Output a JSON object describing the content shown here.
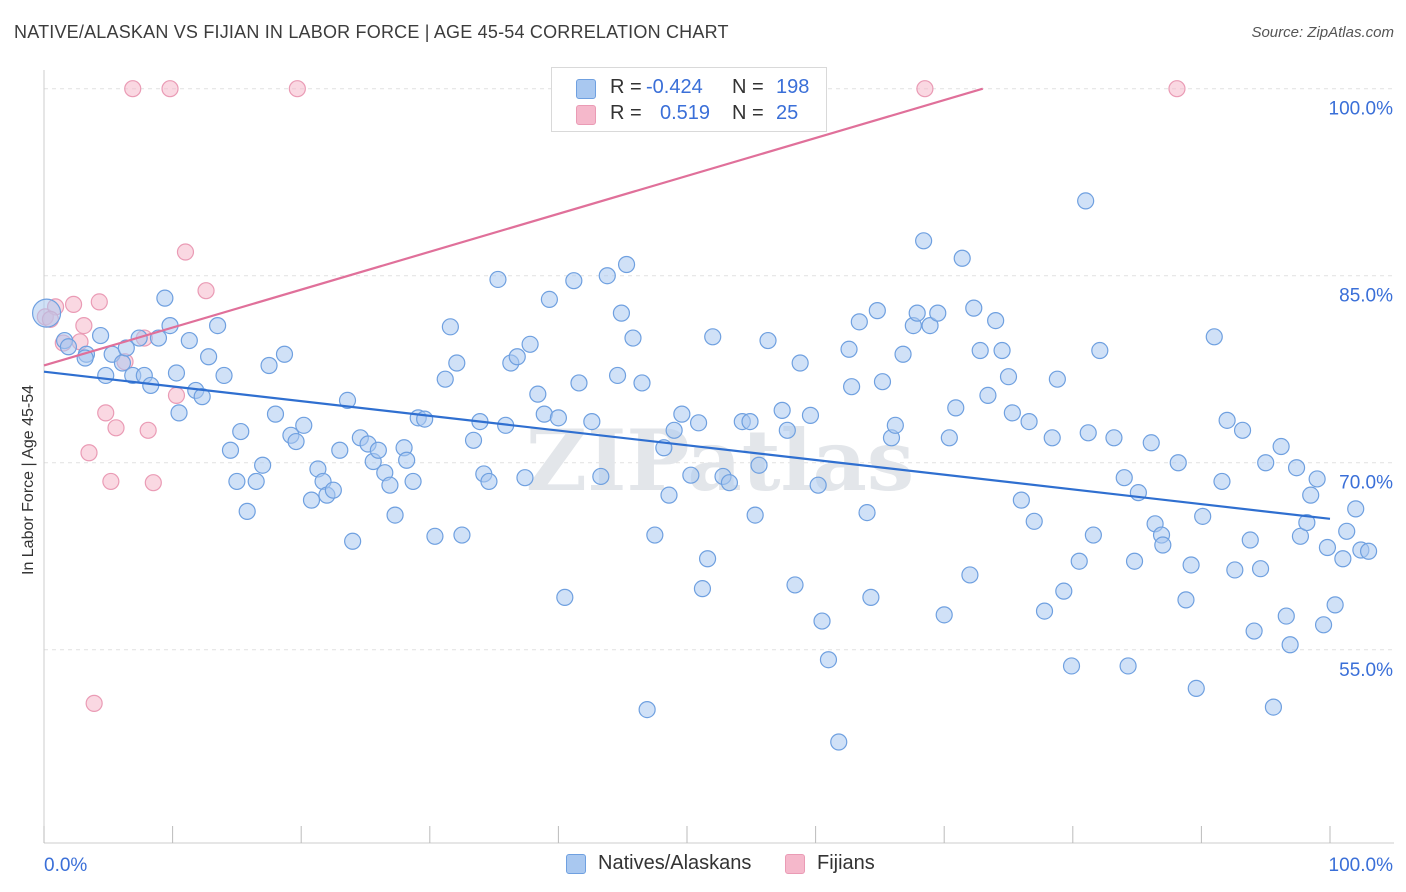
{
  "title": "NATIVE/ALASKAN VS FIJIAN IN LABOR FORCE | AGE 45-54 CORRELATION CHART",
  "source": "Source: ZipAtlas.com",
  "watermark": "ZIPatlas",
  "legend": {
    "rows": [
      {
        "r_label": "R =",
        "r_value": "-0.424",
        "n_label": "N =",
        "n_value": "198",
        "color": "#a9c8f0"
      },
      {
        "r_label": "R =",
        "r_value": "0.519",
        "n_label": "N =",
        "n_value": "25",
        "color": "#f5b8cb"
      }
    ]
  },
  "bottom_legend": [
    {
      "label": "Natives/Alaskans",
      "color": "#a9c8f0"
    },
    {
      "label": "Fijians",
      "color": "#f5b8cb"
    }
  ],
  "chart_data": {
    "type": "scatter",
    "title": "NATIVE/ALASKAN VS FIJIAN IN LABOR FORCE | AGE 45-54 CORRELATION CHART",
    "xlabel": "",
    "ylabel": "In Labor Force | Age 45-54",
    "xlim": [
      0,
      100
    ],
    "ylim": [
      39.5,
      101.5
    ],
    "x_tick_labels": [
      {
        "value": 0,
        "label": "0.0%"
      },
      {
        "value": 100,
        "label": "100.0%"
      }
    ],
    "y_tick_labels": [
      {
        "value": 100,
        "label": "100.0%"
      },
      {
        "value": 85,
        "label": "85.0%"
      },
      {
        "value": 70,
        "label": "70.0%"
      },
      {
        "value": 55,
        "label": "55.0%"
      }
    ],
    "grid": true,
    "series": [
      {
        "name": "Natives/Alaskans",
        "color": "#6fa0e0",
        "fill": "#a9c8f0",
        "trend": {
          "x": [
            0,
            100
          ],
          "y": [
            77.3,
            65.5
          ],
          "color": "#2f6fd0"
        },
        "points": [
          [
            0.2,
            82
          ],
          [
            1.6,
            79.8
          ],
          [
            1.9,
            79.3
          ],
          [
            3.3,
            78.7
          ],
          [
            3.2,
            78.4
          ],
          [
            4.4,
            80.2
          ],
          [
            4.8,
            77
          ],
          [
            5.3,
            78.7
          ],
          [
            6.1,
            78
          ],
          [
            6.4,
            79.2
          ],
          [
            6.9,
            77
          ],
          [
            7.4,
            80
          ],
          [
            7.8,
            77
          ],
          [
            8.3,
            76.2
          ],
          [
            8.9,
            80
          ],
          [
            9.4,
            83.2
          ],
          [
            9.8,
            81
          ],
          [
            10.3,
            77.2
          ],
          [
            10.5,
            74
          ],
          [
            11.3,
            79.8
          ],
          [
            11.8,
            75.8
          ],
          [
            12.3,
            75.3
          ],
          [
            12.8,
            78.5
          ],
          [
            13.5,
            81
          ],
          [
            14,
            77
          ],
          [
            14.5,
            71
          ],
          [
            15,
            68.5
          ],
          [
            15.3,
            72.5
          ],
          [
            15.8,
            66.1
          ],
          [
            16.5,
            68.5
          ],
          [
            17,
            69.8
          ],
          [
            17.5,
            77.8
          ],
          [
            18,
            73.9
          ],
          [
            18.7,
            78.7
          ],
          [
            19.2,
            72.2
          ],
          [
            19.6,
            71.7
          ],
          [
            20.2,
            73
          ],
          [
            20.8,
            67
          ],
          [
            21.3,
            69.5
          ],
          [
            21.7,
            68.5
          ],
          [
            22,
            67.4
          ],
          [
            22.5,
            67.8
          ],
          [
            23,
            71
          ],
          [
            23.6,
            75
          ],
          [
            24,
            63.7
          ],
          [
            24.6,
            72
          ],
          [
            25.2,
            71.5
          ],
          [
            25.6,
            70.1
          ],
          [
            26,
            71
          ],
          [
            26.5,
            69.2
          ],
          [
            26.9,
            68.2
          ],
          [
            27.3,
            65.8
          ],
          [
            28,
            71.2
          ],
          [
            28.2,
            70.2
          ],
          [
            28.7,
            68.5
          ],
          [
            29.1,
            73.6
          ],
          [
            29.6,
            73.5
          ],
          [
            30.4,
            64.1
          ],
          [
            31.2,
            76.7
          ],
          [
            31.6,
            80.9
          ],
          [
            32.1,
            78
          ],
          [
            32.5,
            64.2
          ],
          [
            33.4,
            71.8
          ],
          [
            33.9,
            73.3
          ],
          [
            34.2,
            69.1
          ],
          [
            34.6,
            68.5
          ],
          [
            35.3,
            84.7
          ],
          [
            35.9,
            73
          ],
          [
            36.3,
            78
          ],
          [
            36.8,
            78.5
          ],
          [
            37.4,
            68.8
          ],
          [
            37.8,
            79.5
          ],
          [
            38.4,
            75.5
          ],
          [
            38.9,
            73.9
          ],
          [
            39.3,
            83.1
          ],
          [
            40,
            73.6
          ],
          [
            40.5,
            59.2
          ],
          [
            41.2,
            84.6
          ],
          [
            41.6,
            76.4
          ],
          [
            42.6,
            73.3
          ],
          [
            43.3,
            68.9
          ],
          [
            43.8,
            85
          ],
          [
            44.6,
            77
          ],
          [
            44.9,
            82
          ],
          [
            45.3,
            85.9
          ],
          [
            45.8,
            80
          ],
          [
            46.5,
            76.4
          ],
          [
            46.9,
            50.2
          ],
          [
            47.5,
            64.2
          ],
          [
            48.2,
            71.2
          ],
          [
            48.6,
            67.4
          ],
          [
            49,
            72.6
          ],
          [
            49.6,
            73.9
          ],
          [
            50.3,
            69
          ],
          [
            50.9,
            73.2
          ],
          [
            51.2,
            59.9
          ],
          [
            51.6,
            62.3
          ],
          [
            52,
            80.1
          ],
          [
            52.8,
            68.9
          ],
          [
            53.3,
            68.4
          ],
          [
            54.3,
            73.3
          ],
          [
            54.9,
            73.3
          ],
          [
            55.3,
            65.8
          ],
          [
            55.6,
            69.8
          ],
          [
            56.3,
            79.8
          ],
          [
            57.4,
            74.2
          ],
          [
            57.8,
            72.6
          ],
          [
            58.4,
            60.2
          ],
          [
            58.8,
            78
          ],
          [
            59.6,
            73.8
          ],
          [
            60.2,
            68.2
          ],
          [
            60.5,
            57.3
          ],
          [
            61,
            54.2
          ],
          [
            61.8,
            47.6
          ],
          [
            62.6,
            79.1
          ],
          [
            62.8,
            76.1
          ],
          [
            63.4,
            81.3
          ],
          [
            64,
            66
          ],
          [
            64.3,
            59.2
          ],
          [
            64.8,
            82.2
          ],
          [
            65.2,
            76.5
          ],
          [
            65.9,
            72
          ],
          [
            66.2,
            73
          ],
          [
            66.8,
            78.7
          ],
          [
            67.6,
            81
          ],
          [
            67.9,
            82
          ],
          [
            68.4,
            87.8
          ],
          [
            68.9,
            81
          ],
          [
            69.5,
            82
          ],
          [
            70,
            57.8
          ],
          [
            70.4,
            72
          ],
          [
            70.9,
            74.4
          ],
          [
            71.4,
            86.4
          ],
          [
            72,
            61
          ],
          [
            72.3,
            82.4
          ],
          [
            72.8,
            79
          ],
          [
            73.4,
            75.4
          ],
          [
            74,
            81.4
          ],
          [
            74.5,
            79
          ],
          [
            75,
            76.9
          ],
          [
            75.3,
            74
          ],
          [
            76,
            67
          ],
          [
            76.6,
            73.3
          ],
          [
            77,
            65.3
          ],
          [
            77.8,
            58.1
          ],
          [
            78.4,
            72
          ],
          [
            78.8,
            76.7
          ],
          [
            79.3,
            59.7
          ],
          [
            79.9,
            53.7
          ],
          [
            80.5,
            62.1
          ],
          [
            81,
            91
          ],
          [
            81.2,
            72.4
          ],
          [
            81.6,
            64.2
          ],
          [
            82.1,
            79
          ],
          [
            83.2,
            72
          ],
          [
            84,
            68.8
          ],
          [
            84.3,
            53.7
          ],
          [
            84.8,
            62.1
          ],
          [
            85.1,
            67.6
          ],
          [
            86.1,
            71.6
          ],
          [
            86.4,
            65.1
          ],
          [
            86.9,
            64.2
          ],
          [
            87,
            63.4
          ],
          [
            88.2,
            70
          ],
          [
            88.8,
            59
          ],
          [
            89.2,
            61.8
          ],
          [
            89.6,
            51.9
          ],
          [
            90.1,
            65.7
          ],
          [
            91,
            80.1
          ],
          [
            91.6,
            68.5
          ],
          [
            92,
            73.4
          ],
          [
            92.6,
            61.4
          ],
          [
            93.2,
            72.6
          ],
          [
            93.8,
            63.8
          ],
          [
            94.1,
            56.5
          ],
          [
            94.6,
            61.5
          ],
          [
            95,
            70
          ],
          [
            95.6,
            50.4
          ],
          [
            96.2,
            71.3
          ],
          [
            96.6,
            57.7
          ],
          [
            96.9,
            55.4
          ],
          [
            97.4,
            69.6
          ],
          [
            97.7,
            64.1
          ],
          [
            98.2,
            65.2
          ],
          [
            98.5,
            67.4
          ],
          [
            99,
            68.7
          ],
          [
            99.5,
            57
          ],
          [
            99.8,
            63.2
          ],
          [
            100.4,
            58.6
          ],
          [
            101,
            62.3
          ],
          [
            101.3,
            64.5
          ],
          [
            102,
            66.3
          ],
          [
            102.4,
            63
          ],
          [
            103,
            62.9
          ]
        ]
      },
      {
        "name": "Fijians",
        "color": "#ea9bb5",
        "fill": "#f5b8cb",
        "trend": {
          "x": [
            0,
            73
          ],
          "y": [
            77.8,
            100
          ],
          "color": "#e0709a"
        },
        "points": [
          [
            0.1,
            81.7
          ],
          [
            0.9,
            82.5
          ],
          [
            1.5,
            79.6
          ],
          [
            2.3,
            82.7
          ],
          [
            2.8,
            79.7
          ],
          [
            3.1,
            81
          ],
          [
            3.5,
            70.8
          ],
          [
            3.9,
            50.7
          ],
          [
            4.3,
            82.9
          ],
          [
            4.8,
            74
          ],
          [
            5.2,
            68.5
          ],
          [
            5.6,
            72.8
          ],
          [
            6.3,
            78.1
          ],
          [
            6.9,
            100
          ],
          [
            7.8,
            80
          ],
          [
            8.1,
            72.6
          ],
          [
            8.5,
            68.4
          ],
          [
            9.8,
            100
          ],
          [
            10.3,
            75.4
          ],
          [
            11,
            86.9
          ],
          [
            12.6,
            83.8
          ],
          [
            19.7,
            100
          ],
          [
            68.5,
            100
          ],
          [
            88.1,
            100
          ],
          [
            0.5,
            81.5
          ]
        ]
      }
    ]
  }
}
